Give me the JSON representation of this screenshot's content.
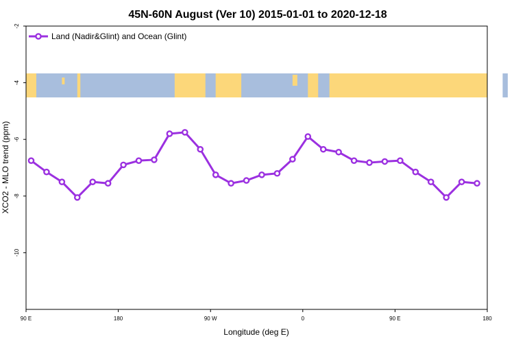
{
  "chart_data": {
    "type": "line",
    "title": "45N-60N August (Ver 10)   2015-01-01 to 2020-12-18",
    "xlabel": "Longitude (deg E)",
    "ylabel": "XCO2 - MLO trend (ppm)",
    "x_ticks": [
      "90 E",
      "180",
      "90 W",
      "0",
      "90 E",
      "180"
    ],
    "y_ticks": [
      "-2",
      "-4",
      "-6",
      "-8",
      "-10"
    ],
    "ylim": [
      -12,
      -2
    ],
    "legend_position": "top-left",
    "map_band": {
      "lat_range": "45N-60N",
      "ocean_color": "#a8bedd",
      "land_color": "#fcd77a"
    },
    "series": [
      {
        "name": "Land (Nadir&Glint) and Ocean (Glint)",
        "color": "#9b30e0",
        "x": [
          95,
          110,
          125,
          140,
          155,
          170,
          185,
          200,
          215,
          230,
          245,
          260,
          275,
          290,
          305,
          320,
          335,
          350,
          365,
          380,
          395,
          410,
          425,
          440,
          455,
          470,
          485,
          500,
          515,
          530
        ],
        "values": [
          -6.75,
          -7.15,
          -7.5,
          -8.05,
          -7.5,
          -7.55,
          -6.9,
          -6.75,
          -6.72,
          -5.8,
          -5.75,
          -6.35,
          -7.25,
          -7.55,
          -7.45,
          -7.25,
          -7.2,
          -6.7,
          -5.9,
          -6.35,
          -6.45,
          -6.75,
          -6.82,
          -6.78,
          -6.75,
          -7.15,
          -7.5,
          -8.05,
          -7.5,
          -7.55
        ]
      }
    ]
  }
}
